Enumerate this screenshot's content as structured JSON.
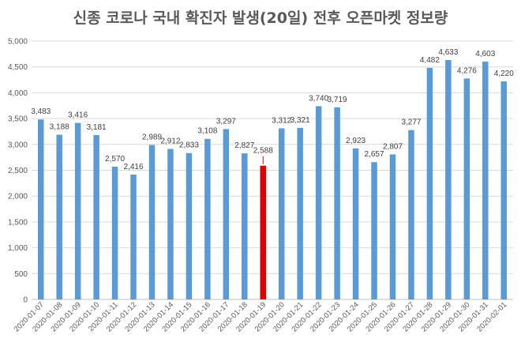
{
  "chart_data": {
    "type": "bar",
    "title": "신종 코로나 국내 확진자 발생(20일) 전후 오픈마켓 정보량",
    "xlabel": "",
    "ylabel": "",
    "ylim": [
      0,
      5000
    ],
    "yticks": [
      "0",
      "500",
      "1,000",
      "1,500",
      "2,000",
      "2,500",
      "3,000",
      "3,500",
      "4,000",
      "4,500",
      "5,000"
    ],
    "grid": true,
    "legend": "none",
    "bar_color": "#5b9bd5",
    "highlight_color": "#e00000",
    "highlight_index": 12,
    "categories": [
      "2020-01-07",
      "2020-01-08",
      "2020-01-09",
      "2020-01-10",
      "2020-01-11",
      "2020-01-12",
      "2020-01-13",
      "2020-01-14",
      "2020-01-15",
      "2020-01-16",
      "2020-01-17",
      "2020-01-18",
      "2020-01-19",
      "2020-01-20",
      "2020-01-21",
      "2020-01-22",
      "2020-01-23",
      "2020-01-24",
      "2020-01-25",
      "2020-01-26",
      "2020-01-27",
      "2020-01-28",
      "2020-01-29",
      "2020-01-30",
      "2020-01-31",
      "2020-02-01"
    ],
    "values": [
      3483,
      3188,
      3416,
      3181,
      2570,
      2416,
      2989,
      2912,
      2833,
      3108,
      3297,
      2827,
      2588,
      3312,
      3321,
      3740,
      3719,
      2923,
      2657,
      2807,
      3277,
      4482,
      4633,
      4276,
      4603,
      4220
    ],
    "value_labels": [
      "3,483",
      "3,188",
      "3,416",
      "3,181",
      "2,570",
      "2,416",
      "2,989",
      "2,912",
      "2,833",
      "3,108",
      "3,297",
      "2,827",
      "2,588",
      "3,312",
      "3,321",
      "3,740",
      "3,719",
      "2,923",
      "2,657",
      "2,807",
      "3,277",
      "4,482",
      "4,633",
      "4,276",
      "4,603",
      "4,220"
    ]
  }
}
